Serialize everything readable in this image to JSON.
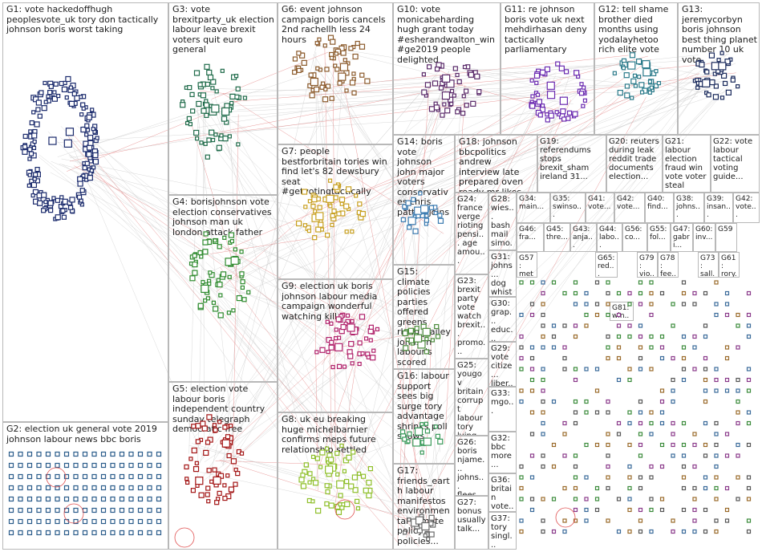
{
  "groups": [
    {
      "id": "G1",
      "label": "G1: vote hackedoffhugh peoplesvote_uk tory don tactically johnson boris worst taking",
      "color": "#1a2a6c"
    },
    {
      "id": "G2",
      "label": "G2: election uk general vote 2019 johnson labour news bbc boris",
      "color": "#2a5c8a"
    },
    {
      "id": "G3",
      "label": "G3: vote brexitparty_uk election labour leave brexit voters quit euro general",
      "color": "#1f6b4a"
    },
    {
      "id": "G4",
      "label": "G4: borisjohnson vote election conservatives johnson man uk london attack father",
      "color": "#2e8b2e"
    },
    {
      "id": "G5",
      "label": "G5: election vote labour boris independent country sunday telegraph democratic free",
      "color": "#a31515"
    },
    {
      "id": "G6",
      "label": "G6: event johnson campaign boris cancels 2nd rachellh less 24 hours",
      "color": "#8b5a2b"
    },
    {
      "id": "G7",
      "label": "G7: people bestforbritain tories win find let's 82 dewsbury seat #getvotingtactically",
      "color": "#c8a020"
    },
    {
      "id": "G8",
      "label": "G8: uk eu breaking huge michelbarnier confirms meps future relationship settled",
      "color": "#8fbf2a"
    },
    {
      "id": "G9",
      "label": "G9: election uk boris johnson labour media campaign wonderful watching kill",
      "color": "#b0206a"
    },
    {
      "id": "G10",
      "label": "G10: vote monicabeharding hugh grant today #esherandwalton_win #ge2019 people delighted",
      "color": "#5a2a6a"
    },
    {
      "id": "G11",
      "label": "G11: re johnson boris vote uk next mehdirhasan deny tactically parliamentary",
      "color": "#6a2ab0"
    },
    {
      "id": "G12",
      "label": "G12: tell shame brother died months using yodalayhetoo rich elite vote",
      "color": "#2a7a8a"
    },
    {
      "id": "G13",
      "label": "G13: jeremycorbyn boris johnson best thing planet number 10 uk vote",
      "color": "#1a2a5c"
    },
    {
      "id": "G14",
      "label": "G14: boris vote johnson john major voters conservatives chris patten joins",
      "color": "#3a7ab0"
    },
    {
      "id": "G15",
      "label": "G15: climate policies parties offered greens rlong_bailey johnson labour's scored higher",
      "color": "#4a8a3a"
    },
    {
      "id": "G16",
      "label": "G16: labour support sees big surge tory advantage shrinks poll shows",
      "color": "#3a9a5a"
    },
    {
      "id": "G17",
      "label": "G17: friends_earth labour manifestos environmental climate policy policies...",
      "color": "#6a6a6a"
    },
    {
      "id": "G18",
      "label": "G18: johnson bbcpolitics andrew interview late prepared oven ready mr likes",
      "color": "#7a5a3a"
    },
    {
      "id": "G19",
      "label": "G19: referendums stops brexit_sham ireland 31...",
      "color": "#8a7a2a"
    },
    {
      "id": "G20",
      "label": "G20: reuters during leak reddit trade documents election...",
      "color": "#4a4a8a"
    },
    {
      "id": "G21",
      "label": "G21: labour election fraud win vote voter steal sure...",
      "color": "#8a3a3a"
    },
    {
      "id": "G22",
      "label": "G22: vote labour tactical voting guide...",
      "color": "#3a8a8a"
    },
    {
      "id": "G23",
      "label": "G23: brexit party vote watch brexit... promo...",
      "color": "#5a5a5a"
    },
    {
      "id": "G24",
      "label": "G24: france verge rioting pensi... age amou...",
      "color": "#4a6a9a"
    },
    {
      "id": "G25",
      "label": "G25: yougov britain corrupt labour tory lying...",
      "color": "#6a4a2a"
    },
    {
      "id": "G26",
      "label": "G26: boris njame... johns... flees...",
      "color": "#2a6a4a"
    },
    {
      "id": "G27",
      "label": "G27: bonus usually talk...",
      "color": "#7a2a5a"
    },
    {
      "id": "G28",
      "label": "G28: wies... bash mail simo...",
      "color": "#5a7a2a"
    },
    {
      "id": "G29",
      "label": "G29: vote citize... liber...",
      "color": "#2a4a7a"
    },
    {
      "id": "G30",
      "label": "G30: grap... educ... mon...",
      "color": "#7a6a2a"
    },
    {
      "id": "G31",
      "label": "G31: johns... dog whist...",
      "color": "#4a2a7a"
    },
    {
      "id": "G32",
      "label": "G32: bbc more...",
      "color": "#2a7a6a"
    },
    {
      "id": "G33",
      "label": "G33: mgo...",
      "color": "#6a2a2a"
    },
    {
      "id": "G34",
      "label": "G34: main...",
      "color": "#3a5a3a"
    },
    {
      "id": "G35",
      "label": "G35: swinso...",
      "color": "#5a3a6a"
    },
    {
      "id": "G36",
      "label": "G36: britain vote...",
      "color": "#2a5a5a"
    },
    {
      "id": "G37",
      "label": "G37: tory singl...",
      "color": "#6a5a3a"
    },
    {
      "id": "G38",
      "label": "G38: johns...",
      "color": "#3a3a6a"
    },
    {
      "id": "G39",
      "label": "G39: insan...",
      "color": "#5a3a3a"
    },
    {
      "id": "G40",
      "label": "G40: find...",
      "color": "#3a6a3a"
    },
    {
      "id": "G41",
      "label": "G41: vote...",
      "color": "#6a3a5a"
    },
    {
      "id": "G42",
      "label": "G42: vote...",
      "color": "#3a5a6a"
    },
    {
      "id": "G43",
      "label": "G43: anja...",
      "color": "#5a6a3a"
    },
    {
      "id": "G44",
      "label": "G44: labo...",
      "color": "#6a4a4a"
    },
    {
      "id": "G45",
      "label": "G45: thre...",
      "color": "#4a4a6a"
    },
    {
      "id": "G46",
      "label": "G46: fra...",
      "color": "#4a6a4a"
    },
    {
      "id": "G47",
      "label": "G47: gabri...",
      "color": "#6a4a6a"
    },
    {
      "id": "G55",
      "label": "G55: fol...",
      "color": "#4a5a6a"
    },
    {
      "id": "G56",
      "label": "G56: co...",
      "color": "#5a4a5a"
    },
    {
      "id": "G57",
      "label": "G57: met...",
      "color": "#5a5a4a"
    },
    {
      "id": "G59",
      "label": "G59",
      "color": "#5a5a5a"
    },
    {
      "id": "G60",
      "label": "G60: inv...",
      "color": "#4a5a5a"
    },
    {
      "id": "G61",
      "label": "G61: rory...",
      "color": "#5a4a4a"
    },
    {
      "id": "G65",
      "label": "G65: red...",
      "color": "#6a3a3a"
    },
    {
      "id": "G73",
      "label": "G73: sall...",
      "color": "#3a4a6a"
    },
    {
      "id": "G78",
      "label": "G78: fee...",
      "color": "#4a3a5a"
    },
    {
      "id": "G79",
      "label": "G79: vio...",
      "color": "#3a5a4a"
    },
    {
      "id": "G81",
      "label": "G81: win...",
      "color": "#5a3a4a"
    },
    {
      "id": "G93",
      "label": "G93",
      "color": "#4a4a4a"
    }
  ]
}
